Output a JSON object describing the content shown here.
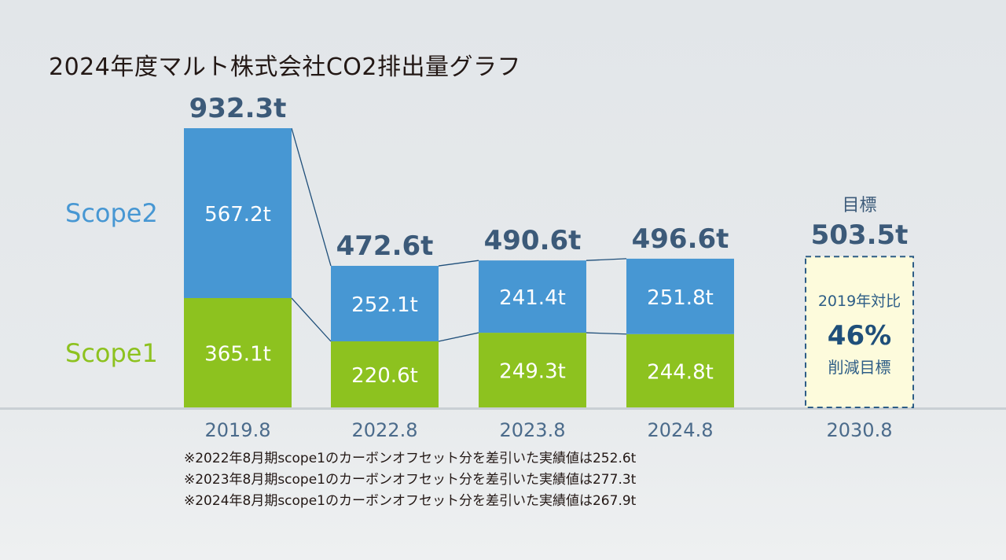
{
  "chart_data": {
    "type": "bar",
    "title": "2024年度マルト株式会社CO2排出量グラフ",
    "categories": [
      "2019.8",
      "2022.8",
      "2023.8",
      "2024.8"
    ],
    "series": [
      {
        "name": "Scope1",
        "values": [
          365.1,
          220.6,
          249.3,
          244.8
        ],
        "labels": [
          "365.1t",
          "220.6t",
          "249.3t",
          "244.8t"
        ]
      },
      {
        "name": "Scope2",
        "values": [
          567.2,
          252.1,
          241.4,
          251.8
        ],
        "labels": [
          "567.2t",
          "252.1t",
          "241.4t",
          "251.8t"
        ]
      }
    ],
    "totals": [
      932.3,
      472.6,
      490.6,
      496.6
    ],
    "total_labels": [
      "932.3t",
      "472.6t",
      "490.6t",
      "496.6t"
    ],
    "target": {
      "category": "2030.8",
      "heading": "目標",
      "value": 503.5,
      "value_label": "503.5t",
      "line1": "2019年対比",
      "percent": "46%",
      "line3": "削減目標"
    },
    "stacked": true,
    "ylim": [
      0,
      1000
    ],
    "grid": false,
    "legend": "left",
    "colors": {
      "scope1": "#8dc21f",
      "scope2": "#4797d3",
      "label": "#3c5a79",
      "connector": "#1f4f7a",
      "target_fill": "#fdfbdc"
    }
  },
  "notes": [
    "※2022年8月期scope1のカーボンオフセット分を差引いた実績値は252.6t",
    "※2023年8月期scope1のカーボンオフセット分を差引いた実績値は277.3t",
    "※2024年8月期scope1のカーボンオフセット分を差引いた実績値は267.9t"
  ]
}
